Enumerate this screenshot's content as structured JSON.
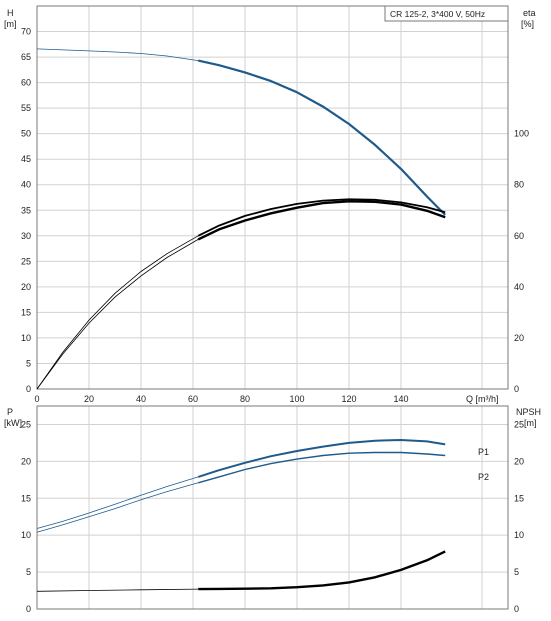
{
  "chart_data": [
    {
      "type": "line",
      "title": "CR 125-2, 3*400 V, 50Hz",
      "ylabel_left": "H",
      "ylabel_left_unit": "[m]",
      "ylabel_right": "eta",
      "ylabel_right_unit": "[%]",
      "xlabel": "Q [m³/h]",
      "x_ticks": [
        "0",
        "20",
        "40",
        "60",
        "80",
        "100",
        "120",
        "140"
      ],
      "y_ticks_left": [
        "0",
        "5",
        "10",
        "15",
        "20",
        "25",
        "30",
        "35",
        "40",
        "45",
        "50",
        "55",
        "60",
        "65",
        "70"
      ],
      "y_ticks_right": [
        "0",
        "20",
        "40",
        "60",
        "80",
        "100"
      ],
      "xlim": [
        0,
        162
      ],
      "ylim_left": [
        0,
        75
      ],
      "ylim_right": [
        0,
        150
      ],
      "grid": true,
      "series": [
        {
          "color": "#1e5a8c",
          "axis": "left",
          "x": [
            0,
            10,
            20,
            30,
            40,
            50,
            62,
            70,
            80,
            90,
            100,
            110,
            120,
            130,
            140,
            150,
            157
          ],
          "y": [
            66.6,
            66.4,
            66.2,
            66.0,
            65.7,
            65.2,
            64.3,
            63.4,
            62.0,
            60.3,
            58.1,
            55.3,
            51.9,
            47.8,
            43.1,
            37.7,
            34.1
          ]
        },
        {
          "color": "#000000",
          "axis": "right",
          "x": [
            0,
            10,
            20,
            30,
            40,
            50,
            62,
            70,
            80,
            90,
            100,
            110,
            120,
            130,
            140,
            150,
            157
          ],
          "y": [
            0,
            14.5,
            27,
            37.5,
            46,
            53,
            60,
            64,
            67.8,
            70.5,
            72.5,
            73.8,
            74.3,
            74.1,
            73.1,
            71.2,
            69.2
          ]
        },
        {
          "color": "#000000",
          "axis": "right",
          "x": [
            0,
            10,
            20,
            30,
            40,
            50,
            62,
            70,
            80,
            90,
            100,
            110,
            120,
            130,
            140,
            150,
            157
          ],
          "y": [
            0,
            13.8,
            25.8,
            36,
            44.3,
            51.5,
            58.6,
            62.5,
            66,
            68.8,
            71,
            72.8,
            73.5,
            73.3,
            72.2,
            69.8,
            67.3
          ]
        }
      ]
    },
    {
      "type": "line",
      "ylabel_left": "P",
      "ylabel_left_unit": "[kW]",
      "ylabel_right": "NPSH",
      "ylabel_right_unit": "[m]",
      "y_ticks_left": [
        "0",
        "5",
        "10",
        "15",
        "20",
        "25"
      ],
      "y_ticks_right": [
        "0",
        "5",
        "10",
        "15",
        "20",
        "25"
      ],
      "xlim": [
        0,
        162
      ],
      "ylim_left": [
        0,
        27.5
      ],
      "ylim_right": [
        0,
        27.5
      ],
      "grid": true,
      "series": [
        {
          "name": "P1",
          "color": "#1e5a8c",
          "axis": "left",
          "x": [
            0,
            10,
            20,
            30,
            40,
            50,
            62,
            70,
            80,
            90,
            100,
            110,
            120,
            130,
            140,
            150,
            157
          ],
          "y": [
            10.9,
            11.9,
            13.0,
            14.2,
            15.4,
            16.6,
            17.9,
            18.8,
            19.8,
            20.7,
            21.4,
            22.0,
            22.5,
            22.8,
            22.9,
            22.7,
            22.3
          ]
        },
        {
          "name": "P2",
          "color": "#1e5a8c",
          "axis": "left",
          "x": [
            0,
            10,
            20,
            30,
            40,
            50,
            62,
            70,
            80,
            90,
            100,
            110,
            120,
            130,
            140,
            150,
            157
          ],
          "y": [
            10.4,
            11.4,
            12.5,
            13.6,
            14.8,
            15.9,
            17.1,
            17.9,
            18.9,
            19.7,
            20.3,
            20.8,
            21.1,
            21.2,
            21.2,
            21.0,
            20.8
          ]
        },
        {
          "color": "#000000",
          "axis": "right",
          "x": [
            0,
            20,
            40,
            62,
            70,
            80,
            90,
            100,
            110,
            120,
            130,
            140,
            150,
            157
          ],
          "y": [
            2.4,
            2.5,
            2.6,
            2.7,
            2.72,
            2.75,
            2.8,
            2.95,
            3.2,
            3.6,
            4.3,
            5.3,
            6.6,
            7.8
          ]
        }
      ]
    }
  ]
}
